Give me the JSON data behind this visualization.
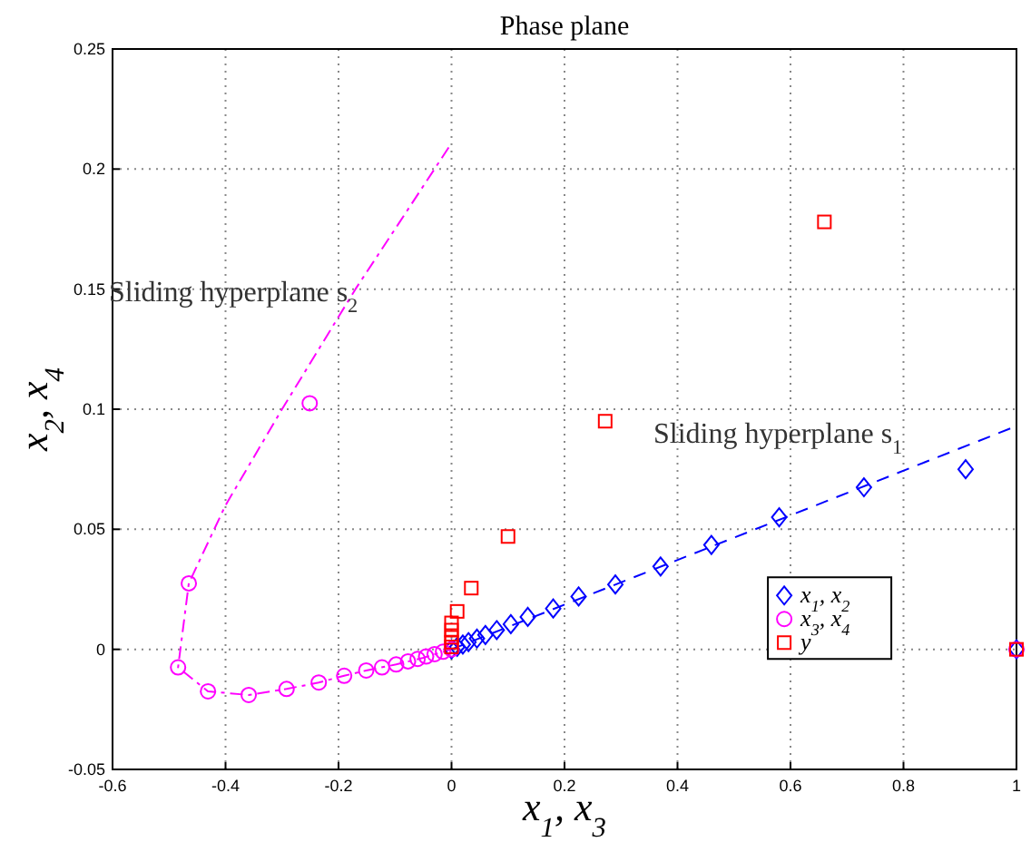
{
  "chart_data": {
    "type": "scatter",
    "title": "Phase plane",
    "xlabel": "x$_{1}$, x$_{3}$",
    "ylabel": "x$_{2}$, x$_{4}$",
    "xlim": [
      -0.6,
      1
    ],
    "xticks": [
      -0.6,
      -0.4,
      -0.2,
      0,
      0.2,
      0.4,
      0.6,
      0.8,
      1
    ],
    "ylim": [
      -0.05,
      0.25
    ],
    "yticks": [
      -0.05,
      0,
      0.05,
      0.1,
      0.15,
      0.2,
      0.25
    ],
    "grid": true,
    "legend": "bottom right",
    "annotations": [
      "Sliding hyperplane s$_{2}$",
      "Sliding hyperplane s$_{1}$"
    ],
    "series": [
      {
        "type": "line",
        "color": "#0000ff",
        "line_style": "dashed",
        "marker": "none",
        "x": [
          0,
          1
        ],
        "values": [
          0,
          0.093
        ]
      },
      {
        "type": "line",
        "color": "#ff00ff",
        "line_style": "dashdot",
        "marker": "none",
        "x": [
          -0.005,
          -0.093,
          -0.17,
          -0.3,
          -0.4,
          -0.465,
          -0.484,
          -0.431,
          -0.359,
          -0.292,
          -0.235,
          -0.19,
          -0.151,
          -0.098,
          -0.05,
          0
        ],
        "values": [
          0.209,
          0.1775,
          0.15,
          0.1,
          0.06,
          0.0275,
          -0.0075,
          -0.0175,
          -0.019,
          -0.0165,
          -0.0138,
          -0.011,
          -0.0088,
          -0.0063,
          -0.0035,
          0
        ]
      },
      {
        "type": "scatter",
        "name": "x$_{1}$, x$_{2}$",
        "color": "#0000ff",
        "marker": "diamond",
        "x": [
          1,
          0.91,
          0.73,
          0.58,
          0.46,
          0.37,
          0.29,
          0.225,
          0.18,
          0.135,
          0.105,
          0.08,
          0.06,
          0.045,
          0.03,
          0.02,
          0.01,
          0
        ],
        "values": [
          0,
          0.075,
          0.0675,
          0.055,
          0.0435,
          0.0345,
          0.027,
          0.022,
          0.017,
          0.0135,
          0.0105,
          0.008,
          0.006,
          0.0045,
          0.003,
          0.002,
          0.001,
          0
        ]
      },
      {
        "type": "scatter",
        "name": "x$_{3}$, x$_{4}$",
        "color": "#ff00ff",
        "marker": "circle",
        "x": [
          1,
          -0.251,
          -0.465,
          -0.484,
          -0.431,
          -0.359,
          -0.292,
          -0.235,
          -0.19,
          -0.151,
          -0.123,
          -0.098,
          -0.077,
          -0.06,
          -0.045,
          -0.03,
          -0.015,
          0
        ],
        "values": [
          0,
          0.1025,
          0.0275,
          -0.0075,
          -0.0175,
          -0.019,
          -0.0165,
          -0.0138,
          -0.011,
          -0.0088,
          -0.0075,
          -0.0063,
          -0.005,
          -0.004,
          -0.003,
          -0.002,
          -0.001,
          0
        ]
      },
      {
        "type": "scatter",
        "name": "y",
        "color": "#ff0000",
        "marker": "square",
        "x": [
          1,
          0.66,
          0.272,
          0.1,
          0.035,
          0.01,
          0,
          0,
          0,
          0,
          0
        ],
        "values": [
          0,
          0.178,
          0.095,
          0.047,
          0.0255,
          0.0158,
          0.011,
          0.008,
          0.005,
          0.003,
          0.001
        ]
      }
    ]
  }
}
